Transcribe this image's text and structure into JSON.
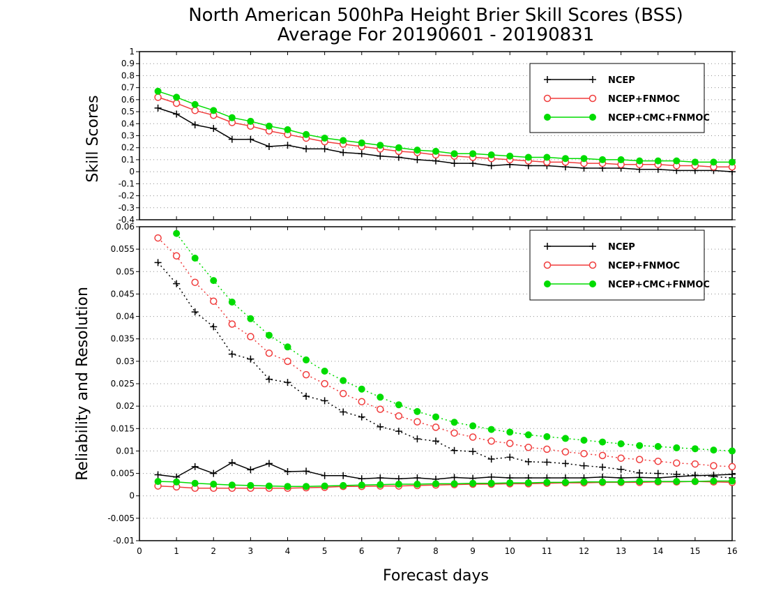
{
  "title_line1": "North American 500hPa Height Brier Skill Scores (BSS)",
  "title_line2": "Average For 20190601 - 20190831",
  "xlabel": "Forecast days",
  "colors": {
    "NCEP": "#000000",
    "NCEP+FNMOC": "#f03c3c",
    "NCEP+CMC+FNMOC": "#00dc00"
  },
  "chart_data": [
    {
      "type": "line",
      "ylabel": "Skill Scores",
      "xlim": [
        0,
        16
      ],
      "ylim": [
        -0.4,
        1
      ],
      "xticks": [
        0,
        1,
        2,
        3,
        4,
        5,
        6,
        7,
        8,
        9,
        10,
        11,
        12,
        13,
        14,
        15,
        16
      ],
      "yticks": [
        -0.4,
        -0.3,
        -0.2,
        -0.1,
        0,
        0.1,
        0.2,
        0.3,
        0.4,
        0.5,
        0.6,
        0.7,
        0.8,
        0.9,
        1
      ],
      "ytick_labels": [
        "-0.4",
        "-0.3",
        "-0.2",
        "-0.1",
        "0",
        "0.1",
        "0.2",
        "0.3",
        "0.4",
        "0.5",
        "0.6",
        "0.7",
        "0.8",
        "0.9",
        "1"
      ],
      "grid": true,
      "legend": "top-right",
      "x": [
        0.5,
        1,
        1.5,
        2,
        2.5,
        3,
        3.5,
        4,
        4.5,
        5,
        5.5,
        6,
        6.5,
        7,
        7.5,
        8,
        8.5,
        9,
        9.5,
        10,
        10.5,
        11,
        11.5,
        12,
        12.5,
        13,
        13.5,
        14,
        14.5,
        15,
        15.5,
        16
      ],
      "series": [
        {
          "name": "NCEP",
          "marker": "plus",
          "line": "solid",
          "values": [
            0.53,
            0.48,
            0.39,
            0.36,
            0.27,
            0.27,
            0.21,
            0.22,
            0.19,
            0.19,
            0.16,
            0.15,
            0.13,
            0.12,
            0.1,
            0.09,
            0.07,
            0.07,
            0.05,
            0.06,
            0.05,
            0.05,
            0.04,
            0.03,
            0.03,
            0.03,
            0.02,
            0.02,
            0.01,
            0.01,
            0.01,
            0.0
          ]
        },
        {
          "name": "NCEP+FNMOC",
          "marker": "circle-open",
          "line": "solid",
          "values": [
            0.62,
            0.57,
            0.51,
            0.47,
            0.41,
            0.38,
            0.34,
            0.31,
            0.28,
            0.25,
            0.23,
            0.21,
            0.19,
            0.17,
            0.16,
            0.14,
            0.13,
            0.12,
            0.11,
            0.1,
            0.09,
            0.08,
            0.08,
            0.07,
            0.07,
            0.06,
            0.06,
            0.06,
            0.05,
            0.05,
            0.04,
            0.04
          ]
        },
        {
          "name": "NCEP+CMC+FNMOC",
          "marker": "circle-filled",
          "line": "solid",
          "values": [
            0.67,
            0.62,
            0.56,
            0.51,
            0.45,
            0.42,
            0.38,
            0.35,
            0.31,
            0.28,
            0.26,
            0.24,
            0.22,
            0.2,
            0.18,
            0.17,
            0.15,
            0.15,
            0.14,
            0.13,
            0.12,
            0.12,
            0.11,
            0.11,
            0.1,
            0.1,
            0.09,
            0.09,
            0.09,
            0.08,
            0.08,
            0.08
          ]
        }
      ]
    },
    {
      "type": "line",
      "ylabel": "Reliability and Resolution",
      "xlabel": "Forecast days",
      "xlim": [
        0,
        16
      ],
      "ylim": [
        -0.01,
        0.06
      ],
      "xticks": [
        0,
        1,
        2,
        3,
        4,
        5,
        6,
        7,
        8,
        9,
        10,
        11,
        12,
        13,
        14,
        15,
        16
      ],
      "yticks": [
        -0.01,
        -0.005,
        0,
        0.005,
        0.01,
        0.015,
        0.02,
        0.025,
        0.03,
        0.035,
        0.04,
        0.045,
        0.05,
        0.055,
        0.06
      ],
      "ytick_labels": [
        "-0.01",
        "-0.005",
        "0",
        "0.005",
        "0.01",
        "0.015",
        "0.02",
        "0.025",
        "0.03",
        "0.035",
        "0.04",
        "0.045",
        "0.05",
        "0.055",
        "0.06"
      ],
      "grid": true,
      "legend": "top-right",
      "x": [
        0.5,
        1,
        1.5,
        2,
        2.5,
        3,
        3.5,
        4,
        4.5,
        5,
        5.5,
        6,
        6.5,
        7,
        7.5,
        8,
        8.5,
        9,
        9.5,
        10,
        10.5,
        11,
        11.5,
        12,
        12.5,
        13,
        13.5,
        14,
        14.5,
        15,
        15.5,
        16
      ],
      "series": [
        {
          "name": "NCEP",
          "marker": "plus",
          "line": "dotted",
          "values": [
            0.052,
            0.0473,
            0.041,
            0.0377,
            0.0316,
            0.0305,
            0.026,
            0.0253,
            0.0222,
            0.0212,
            0.0187,
            0.0176,
            0.0154,
            0.0144,
            0.0127,
            0.0122,
            0.0101,
            0.0099,
            0.0082,
            0.0086,
            0.0076,
            0.0075,
            0.0072,
            0.0067,
            0.0064,
            0.0059,
            0.0051,
            0.005,
            0.0048,
            0.0046,
            0.0043,
            0.004
          ]
        },
        {
          "name": "NCEP+FNMOC",
          "marker": "circle-open",
          "line": "dotted",
          "values": [
            0.0575,
            0.0535,
            0.0476,
            0.0434,
            0.0383,
            0.0355,
            0.0318,
            0.03,
            0.027,
            0.025,
            0.0228,
            0.021,
            0.0193,
            0.0178,
            0.0165,
            0.0153,
            0.014,
            0.0131,
            0.0122,
            0.0117,
            0.0108,
            0.0104,
            0.0098,
            0.0094,
            0.009,
            0.0084,
            0.0081,
            0.0077,
            0.0073,
            0.0071,
            0.0067,
            0.0065
          ]
        },
        {
          "name": "NCEP+CMC+FNMOC",
          "marker": "circle-filled",
          "line": "dotted",
          "values": [
            null,
            0.0585,
            0.053,
            0.048,
            0.0432,
            0.0395,
            0.0358,
            0.0332,
            0.0303,
            0.0278,
            0.0257,
            0.0238,
            0.022,
            0.0203,
            0.0188,
            0.0176,
            0.0164,
            0.0156,
            0.0148,
            0.0142,
            0.0136,
            0.0132,
            0.0128,
            0.0124,
            0.012,
            0.0116,
            0.0112,
            0.011,
            0.0107,
            0.0105,
            0.0102,
            0.01
          ]
        },
        {
          "name": "NCEP",
          "marker": "plus",
          "line": "solid",
          "values": [
            0.0047,
            0.0042,
            0.0065,
            0.005,
            0.0074,
            0.0058,
            0.0072,
            0.0054,
            0.0055,
            0.0045,
            0.0045,
            0.0038,
            0.004,
            0.0038,
            0.004,
            0.0037,
            0.0041,
            0.0039,
            0.0042,
            0.004,
            0.004,
            0.004,
            0.004,
            0.004,
            0.0042,
            0.004,
            0.0041,
            0.004,
            0.0043,
            0.0045,
            0.0046,
            0.0048
          ]
        },
        {
          "name": "NCEP+FNMOC",
          "marker": "circle-open",
          "line": "solid",
          "values": [
            0.0022,
            0.002,
            0.0017,
            0.0017,
            0.0017,
            0.0017,
            0.0017,
            0.0017,
            0.0018,
            0.0019,
            0.0021,
            0.0021,
            0.0022,
            0.0022,
            0.0023,
            0.0024,
            0.0025,
            0.0026,
            0.0026,
            0.0027,
            0.0027,
            0.0028,
            0.0029,
            0.0029,
            0.003,
            0.003,
            0.003,
            0.0031,
            0.0031,
            0.0032,
            0.0031,
            0.003
          ]
        },
        {
          "name": "NCEP+CMC+FNMOC",
          "marker": "circle-filled",
          "line": "solid",
          "values": [
            0.0032,
            0.0031,
            0.0028,
            0.0026,
            0.0024,
            0.0023,
            0.0022,
            0.0021,
            0.0021,
            0.0022,
            0.0023,
            0.0024,
            0.0025,
            0.0026,
            0.0026,
            0.0027,
            0.0027,
            0.0028,
            0.0028,
            0.0029,
            0.0029,
            0.003,
            0.003,
            0.0031,
            0.0031,
            0.0031,
            0.0032,
            0.0032,
            0.0032,
            0.0032,
            0.0033,
            0.0033
          ]
        }
      ]
    }
  ]
}
